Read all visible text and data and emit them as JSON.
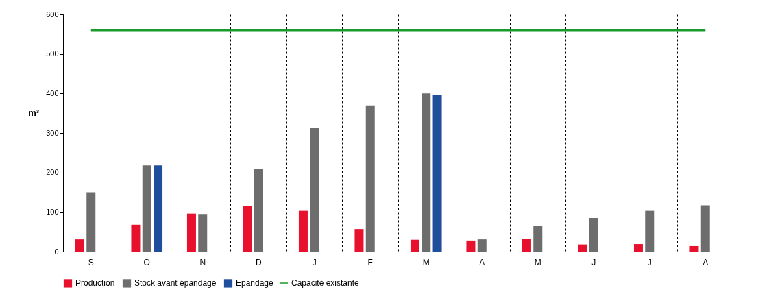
{
  "chart_data": {
    "type": "bar",
    "ylabel": "m³",
    "categories": [
      "S",
      "O",
      "N",
      "D",
      "J",
      "F",
      "M",
      "A",
      "M",
      "J",
      "J",
      "A"
    ],
    "series": [
      {
        "name": "Production",
        "color": "#e8112d",
        "values": [
          31,
          68,
          96,
          115,
          103,
          57,
          30,
          28,
          33,
          18,
          19,
          14
        ]
      },
      {
        "name": "Stock avant épandage",
        "color": "#6d6d6d",
        "values": [
          150,
          218,
          95,
          210,
          312,
          370,
          400,
          31,
          65,
          85,
          103,
          117
        ]
      },
      {
        "name": "Epandage",
        "color": "#1f4e9c",
        "values": [
          null,
          218,
          null,
          null,
          null,
          null,
          396,
          null,
          null,
          null,
          null,
          null
        ]
      },
      {
        "name": "Capacité existante",
        "color": "#1a9a2a",
        "type": "line",
        "values": [
          560,
          560,
          560,
          560,
          560,
          560,
          560,
          560,
          560,
          560,
          560,
          560
        ]
      }
    ],
    "ylim": [
      0,
      600
    ],
    "yticks": [
      0,
      100,
      200,
      300,
      400,
      500,
      600
    ],
    "grid": "x",
    "legend": "bottom"
  }
}
